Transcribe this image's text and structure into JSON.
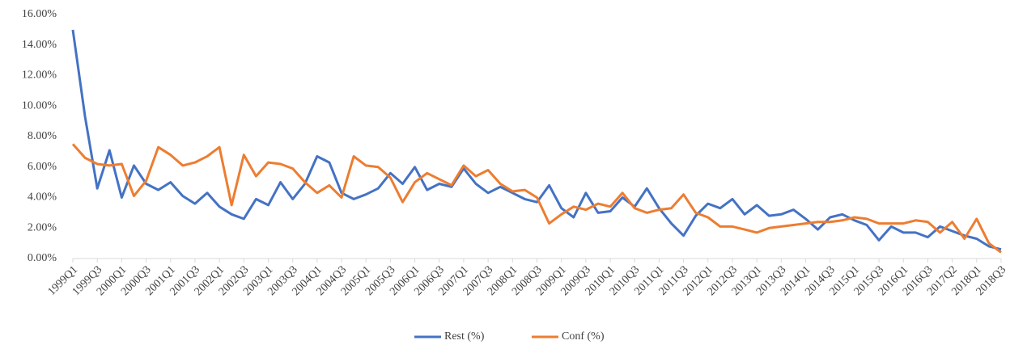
{
  "chart_data": {
    "type": "line",
    "categories": [
      "1999Q1",
      null,
      "1999Q3",
      null,
      "2000Q1",
      null,
      "2000Q3",
      null,
      "2001Q1",
      null,
      "2001Q3",
      null,
      "2002Q1",
      null,
      "2002Q3",
      null,
      "2003Q1",
      null,
      "2003Q3",
      null,
      "2004Q1",
      null,
      "2004Q3",
      null,
      "2005Q1",
      null,
      "2005Q3",
      null,
      "2006Q1",
      null,
      "2006Q3",
      null,
      "2007Q1",
      null,
      "2007Q3",
      null,
      "2008Q1",
      null,
      "2008Q3",
      null,
      "2009Q1",
      null,
      "2009Q3",
      null,
      "2010Q1",
      null,
      "2010Q3",
      null,
      "2011Q1",
      null,
      "2011Q3",
      null,
      "2012Q1",
      null,
      "2012Q3",
      null,
      "2013Q1",
      null,
      "2013Q3",
      null,
      "2014Q1",
      null,
      "2014Q3",
      null,
      "2015Q1",
      null,
      "2015Q3",
      null,
      "2016Q1",
      null,
      "2016Q3",
      null,
      "2017Q2",
      null,
      "2018Q1",
      null,
      "2018Q3"
    ],
    "series": [
      {
        "name": "Rest (%)",
        "color": "#4472c4",
        "values": [
          15.0,
          9.3,
          4.6,
          7.1,
          4.0,
          6.1,
          4.9,
          4.5,
          5.0,
          4.1,
          3.6,
          4.3,
          3.4,
          2.9,
          2.6,
          3.9,
          3.5,
          5.0,
          3.9,
          4.9,
          6.7,
          6.3,
          4.3,
          3.9,
          4.2,
          4.6,
          5.6,
          4.9,
          6.0,
          4.5,
          4.9,
          4.7,
          5.9,
          4.9,
          4.3,
          4.7,
          4.3,
          3.9,
          3.7,
          4.8,
          3.3,
          2.7,
          4.3,
          3.0,
          3.1,
          4.0,
          3.4,
          4.6,
          3.3,
          2.3,
          1.5,
          2.8,
          3.6,
          3.3,
          3.9,
          2.9,
          3.5,
          2.8,
          2.9,
          3.2,
          2.6,
          1.9,
          2.7,
          2.9,
          2.5,
          2.2,
          1.2,
          2.1,
          1.7,
          1.7,
          1.4,
          2.1,
          1.8,
          1.5,
          1.3,
          0.8,
          0.6
        ]
      },
      {
        "name": "Conf (%)",
        "color": "#ed7d31",
        "values": [
          7.5,
          6.6,
          6.2,
          6.1,
          6.2,
          4.1,
          5.1,
          7.3,
          6.8,
          6.1,
          6.3,
          6.7,
          7.3,
          3.5,
          6.8,
          5.4,
          6.3,
          6.2,
          5.9,
          5.0,
          4.3,
          4.8,
          4.0,
          6.7,
          6.1,
          6.0,
          5.3,
          3.7,
          5.0,
          5.6,
          5.2,
          4.8,
          6.1,
          5.4,
          5.8,
          4.9,
          4.4,
          4.5,
          4.0,
          2.3,
          2.9,
          3.4,
          3.2,
          3.6,
          3.4,
          4.3,
          3.3,
          3.0,
          3.2,
          3.3,
          4.2,
          3.0,
          2.7,
          2.1,
          2.1,
          1.9,
          1.7,
          2.0,
          2.1,
          2.2,
          2.3,
          2.4,
          2.4,
          2.5,
          2.7,
          2.6,
          2.3,
          2.3,
          2.3,
          2.5,
          2.4,
          1.7,
          2.4,
          1.3,
          2.6,
          1.0,
          0.4
        ]
      }
    ],
    "ylim": [
      0,
      16
    ],
    "yticks": [
      {
        "value": 0,
        "label": "0.00%"
      },
      {
        "value": 2,
        "label": "2.00%"
      },
      {
        "value": 4,
        "label": "4.00%"
      },
      {
        "value": 6,
        "label": "6.00%"
      },
      {
        "value": 8,
        "label": "8.00%"
      },
      {
        "value": 10,
        "label": "10.00%"
      },
      {
        "value": 12,
        "label": "12.00%"
      },
      {
        "value": 14,
        "label": "14.00%"
      },
      {
        "value": 16,
        "label": "16.00%"
      }
    ],
    "legend": "bottom"
  }
}
